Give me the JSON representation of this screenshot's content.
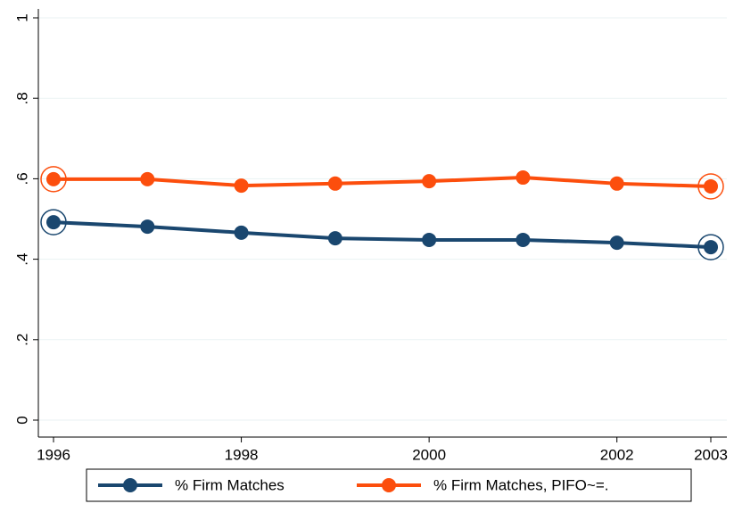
{
  "chart_data": {
    "type": "line",
    "x": [
      1996,
      1997,
      1998,
      1999,
      2000,
      2001,
      2002,
      2003
    ],
    "series": [
      {
        "name": "% Firm Matches",
        "color": "#1a476f",
        "values": [
          0.492,
          0.481,
          0.466,
          0.452,
          0.448,
          0.448,
          0.441,
          0.43
        ]
      },
      {
        "name": "% Firm Matches, PIFO~=.",
        "color": "#fc4e0d",
        "values": [
          0.599,
          0.599,
          0.583,
          0.588,
          0.594,
          0.603,
          0.588,
          0.581
        ]
      }
    ],
    "xlim": [
      1996,
      2003
    ],
    "xticks": [
      1996,
      1998,
      2000,
      2002,
      2003
    ],
    "ylim": [
      0,
      1
    ],
    "yticks": [
      0,
      {
        "value": 0.2,
        "label": ".2"
      },
      {
        "value": 0.4,
        "label": ".4"
      },
      {
        "value": 0.6,
        "label": ".6"
      },
      {
        "value": 0.8,
        "label": ".8"
      },
      1
    ],
    "grid": true
  }
}
